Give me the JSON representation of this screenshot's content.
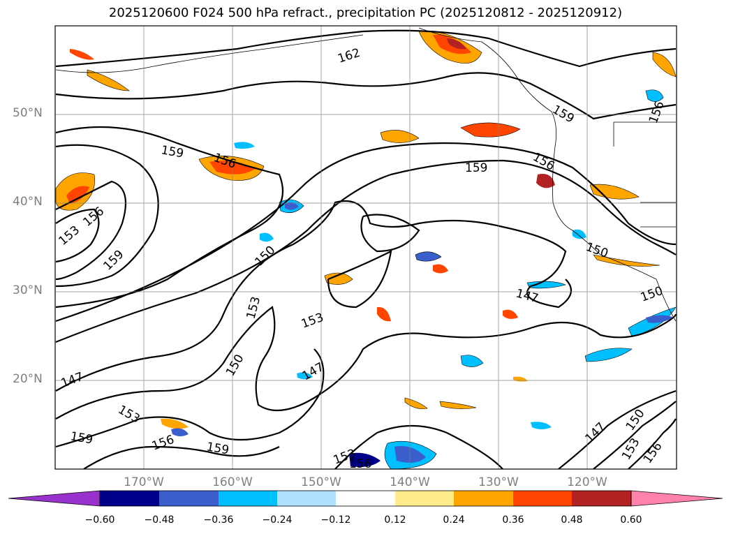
{
  "title": "2025120600 F024 500 hPa refract., precipitation PC (2025120812 - 2025120912)",
  "map": {
    "extent": {
      "lon_min": -180,
      "lon_max": -110,
      "lat_min": 10,
      "lat_max": 60
    },
    "grid": true,
    "lat_labels": [
      "50°N",
      "40°N",
      "30°N",
      "20°N"
    ],
    "lon_labels": [
      "170°W",
      "160°W",
      "150°W",
      "140°W",
      "130°W",
      "120°W"
    ],
    "contour_labels": [
      "162",
      "159",
      "159",
      "156",
      "159",
      "156",
      "153",
      "156",
      "159",
      "150",
      "150",
      "153",
      "153",
      "147",
      "150",
      "147",
      "147",
      "150",
      "153",
      "156",
      "147",
      "153",
      "156",
      "159",
      "156",
      "159",
      "153",
      "156",
      "150"
    ]
  },
  "colorbar": {
    "ticks": [
      "−0.60",
      "−0.48",
      "−0.36",
      "−0.24",
      "−0.12",
      "0.12",
      "0.24",
      "0.36",
      "0.48",
      "0.60"
    ],
    "colors": [
      "#9932cc",
      "#00008b",
      "#3a5fcd",
      "#00bfff",
      "#b0e2ff",
      "#ffffff",
      "#ffec8b",
      "#ffa500",
      "#ff4500",
      "#b22222",
      "#ff82ab"
    ]
  }
}
